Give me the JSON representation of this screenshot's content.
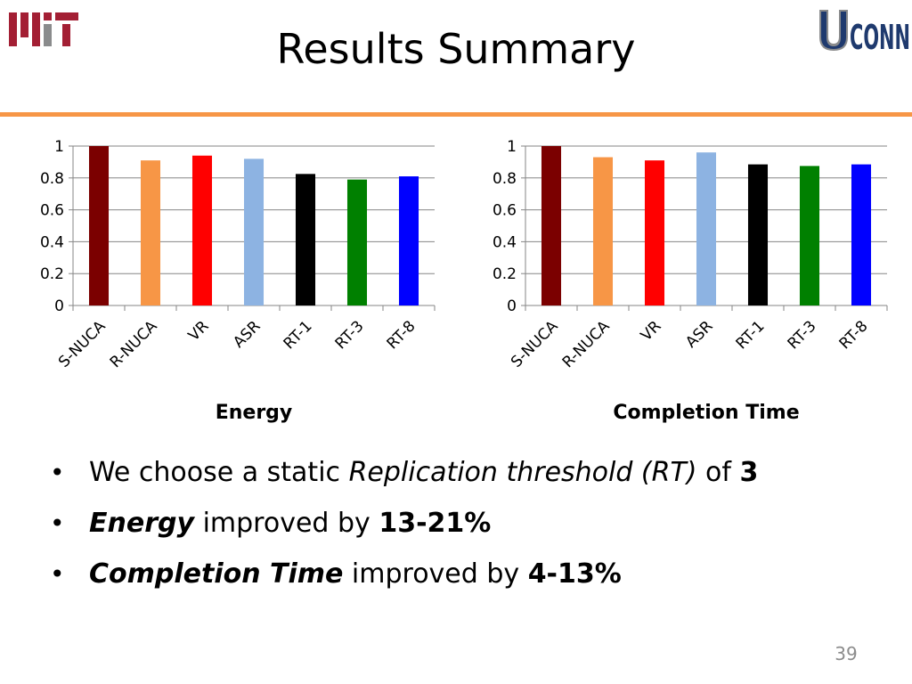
{
  "slide": {
    "title": "Results Summary",
    "page_number": "39",
    "logo_left": "MIT",
    "logo_right": "UCONN"
  },
  "bullets": [
    {
      "parts": [
        {
          "text": "We choose a static ",
          "style": "n"
        },
        {
          "text": "Replication threshold (RT)",
          "style": "i"
        },
        {
          "text": " of ",
          "style": "n"
        },
        {
          "text": "3",
          "style": "b"
        }
      ]
    },
    {
      "parts": [
        {
          "text": "Energy",
          "style": "bi"
        },
        {
          "text": " improved by ",
          "style": "n"
        },
        {
          "text": "13-21%",
          "style": "b"
        }
      ]
    },
    {
      "parts": [
        {
          "text": "Completion Time",
          "style": "bi"
        },
        {
          "text": " improved by ",
          "style": "n"
        },
        {
          "text": "4-13%",
          "style": "b"
        }
      ]
    }
  ],
  "chart_data": [
    {
      "type": "bar",
      "title": "",
      "xlabel": "Energy",
      "ylabel": "",
      "categories": [
        "S-NUCA",
        "R-NUCA",
        "VR",
        "ASR",
        "RT-1",
        "RT-3",
        "RT-8"
      ],
      "values": [
        1.0,
        0.91,
        0.94,
        0.92,
        0.825,
        0.79,
        0.81
      ],
      "colors": [
        "#7b0000",
        "#f79646",
        "#ff0000",
        "#8db3e2",
        "#000000",
        "#008000",
        "#0000ff"
      ],
      "ylim": [
        0,
        1
      ],
      "yticks": [
        "0",
        "0.2",
        "0.4",
        "0.6",
        "0.8",
        "1"
      ],
      "grid": true
    },
    {
      "type": "bar",
      "title": "",
      "xlabel": "Completion Time",
      "ylabel": "",
      "categories": [
        "S-NUCA",
        "R-NUCA",
        "VR",
        "ASR",
        "RT-1",
        "RT-3",
        "RT-8"
      ],
      "values": [
        1.0,
        0.93,
        0.91,
        0.96,
        0.885,
        0.875,
        0.885
      ],
      "colors": [
        "#7b0000",
        "#f79646",
        "#ff0000",
        "#8db3e2",
        "#000000",
        "#008000",
        "#0000ff"
      ],
      "ylim": [
        0,
        1
      ],
      "yticks": [
        "0",
        "0.2",
        "0.4",
        "0.6",
        "0.8",
        "1"
      ],
      "grid": true
    }
  ]
}
